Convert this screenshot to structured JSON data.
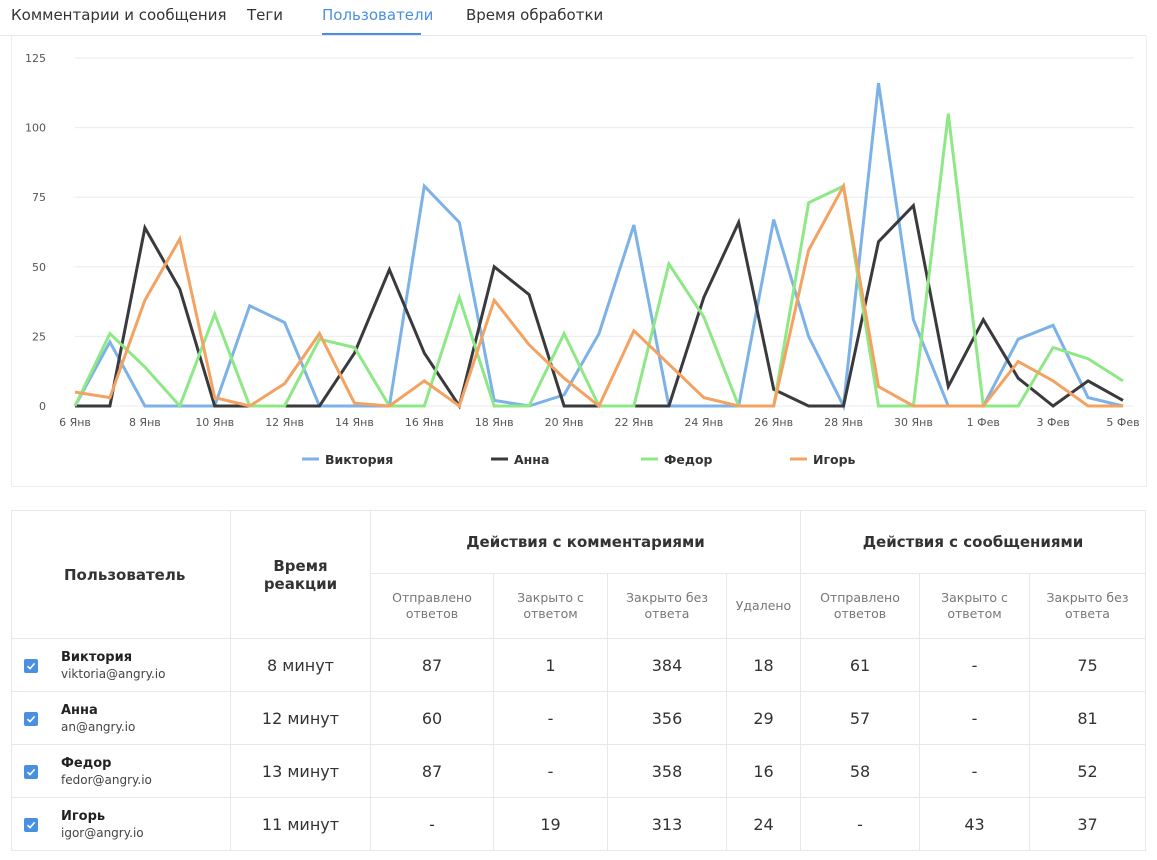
{
  "tabs": [
    {
      "label": "Комментарии и сообщения",
      "active": false
    },
    {
      "label": "Теги",
      "active": false
    },
    {
      "label": "Пользователи",
      "active": true
    },
    {
      "label": "Время обработки",
      "active": false
    }
  ],
  "colors": {
    "accent": "#4a90e2"
  },
  "chart_data": {
    "type": "line",
    "ylim": [
      0,
      125
    ],
    "yticks": [
      0,
      25,
      50,
      75,
      100,
      125
    ],
    "grid": true,
    "legend_position": "bottom",
    "x": [
      "6 Янв",
      "7 Янв",
      "8 Янв",
      "9 Янв",
      "10 Янв",
      "11 Янв",
      "12 Янв",
      "13 Янв",
      "14 Янв",
      "15 Янв",
      "16 Янв",
      "17 Янв",
      "18 Янв",
      "19 Янв",
      "20 Янв",
      "21 Янв",
      "22 Янв",
      "23 Янв",
      "24 Янв",
      "25 Янв",
      "26 Янв",
      "27 Янв",
      "28 Янв",
      "29 Янв",
      "30 Янв",
      "31 Янв",
      "1 Фев",
      "2 Фев",
      "3 Фев",
      "4 Фев",
      "5 Фев"
    ],
    "xtick_labels": [
      "6 Янв",
      "8 Янв",
      "10 Янв",
      "12 Янв",
      "14 Янв",
      "16 Янв",
      "18 Янв",
      "20 Янв",
      "22 Янв",
      "24 Янв",
      "26 Янв",
      "28 Янв",
      "30 Янв",
      "1 Фев",
      "3 Фев",
      "5 Фев"
    ],
    "series": [
      {
        "name": "Виктория",
        "color": "#7cb2e8",
        "values": [
          0,
          23,
          0,
          0,
          0,
          36,
          30,
          0,
          0,
          0,
          79,
          66,
          2,
          0,
          4,
          26,
          65,
          0,
          0,
          0,
          67,
          25,
          0,
          116,
          31,
          0,
          0,
          24,
          29,
          3,
          0
        ]
      },
      {
        "name": "Анна",
        "color": "#3a3a3e",
        "values": [
          0,
          0,
          64,
          42,
          0,
          0,
          0,
          0,
          19,
          49,
          19,
          0,
          50,
          40,
          0,
          0,
          0,
          0,
          39,
          66,
          6,
          0,
          0,
          59,
          72,
          7,
          31,
          10,
          0,
          9,
          2
        ]
      },
      {
        "name": "Федор",
        "color": "#8ee886",
        "values": [
          0,
          26,
          14,
          0,
          33,
          0,
          0,
          24,
          21,
          0,
          0,
          39,
          0,
          0,
          26,
          0,
          0,
          51,
          32,
          0,
          0,
          73,
          79,
          0,
          0,
          105,
          0,
          0,
          21,
          17,
          9
        ]
      },
      {
        "name": "Игорь",
        "color": "#f4a261",
        "values": [
          5,
          3,
          38,
          60,
          3,
          0,
          8,
          26,
          1,
          0,
          9,
          0,
          38,
          22,
          10,
          0,
          27,
          15,
          3,
          0,
          0,
          56,
          79,
          7,
          0,
          0,
          0,
          16,
          9,
          0,
          0
        ]
      }
    ]
  },
  "table": {
    "headers": {
      "user": "Пользователь",
      "reaction": "Время реакции",
      "comments_group": "Действия с комментариями",
      "messages_group": "Действия с сообщениями",
      "comments_cols": [
        "Отправлено ответов",
        "Закрыто с ответом",
        "Закрыто без ответа",
        "Удалено"
      ],
      "messages_cols": [
        "Отправлено ответов",
        "Закрыто с ответом",
        "Закрыто без ответа"
      ]
    },
    "rows": [
      {
        "name": "Виктория",
        "email": "viktoria@angry.io",
        "checked": true,
        "reaction": "8 минут",
        "values": [
          "87",
          "1",
          "384",
          "18",
          "61",
          "-",
          "75"
        ]
      },
      {
        "name": "Анна",
        "email": "an@angry.io",
        "checked": true,
        "reaction": "12 минут",
        "values": [
          "60",
          "-",
          "356",
          "29",
          "57",
          "-",
          "81"
        ]
      },
      {
        "name": "Федор",
        "email": "fedor@angry.io",
        "checked": true,
        "reaction": "13 минут",
        "values": [
          "87",
          "-",
          "358",
          "16",
          "58",
          "-",
          "52"
        ]
      },
      {
        "name": "Игорь",
        "email": "igor@angry.io",
        "checked": true,
        "reaction": "11 минут",
        "values": [
          "-",
          "19",
          "313",
          "24",
          "-",
          "43",
          "37"
        ]
      }
    ]
  }
}
